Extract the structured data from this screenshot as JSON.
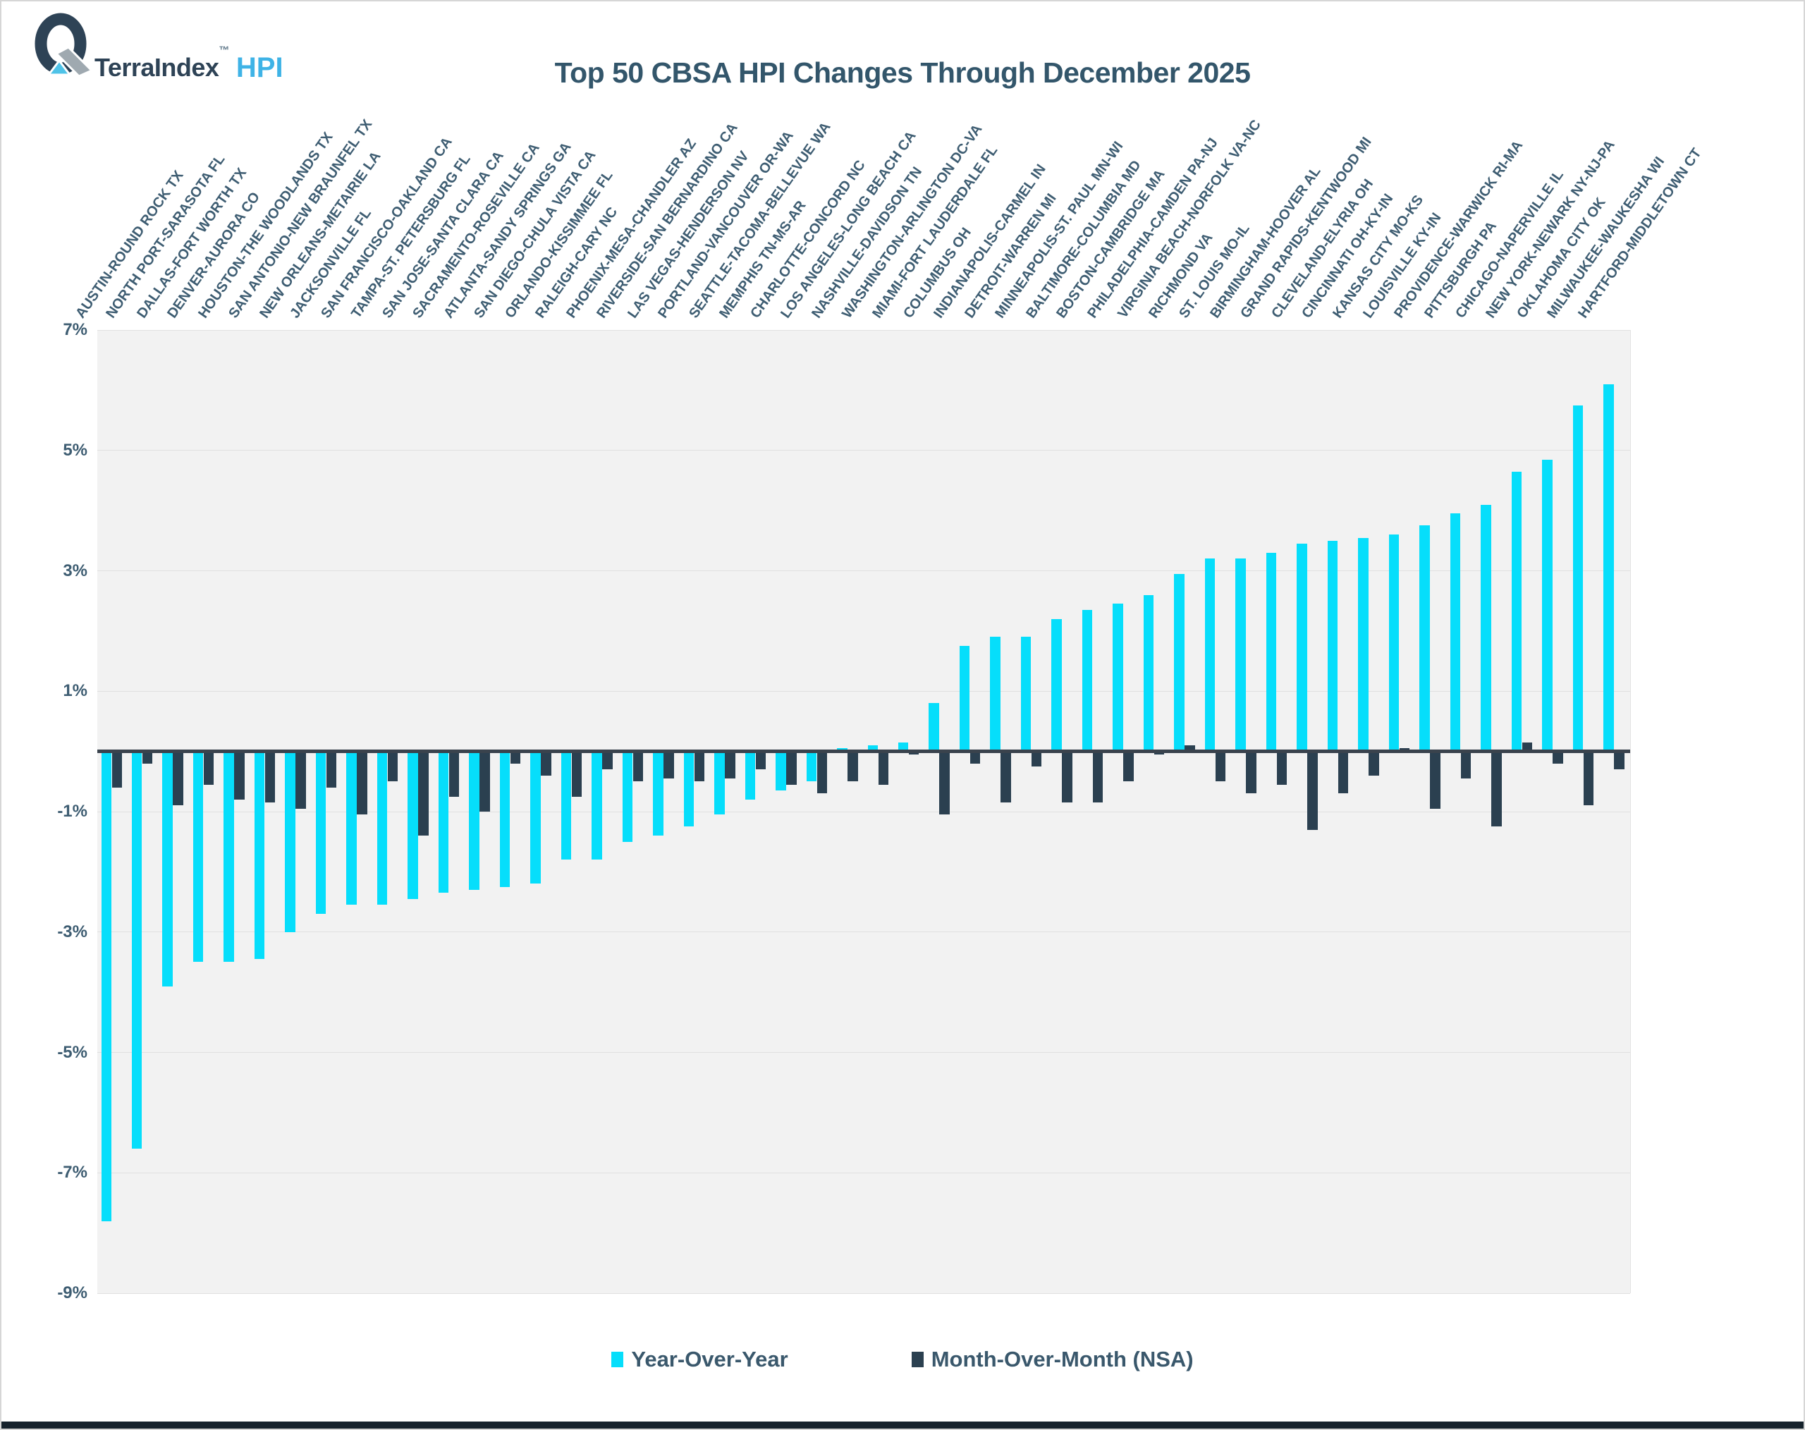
{
  "logo": {
    "brand": "TerraIndex",
    "tm": "™",
    "suffix": "HPI"
  },
  "header": {
    "title": "Top 50 CBSA HPI Changes Through December 2025"
  },
  "legend": {
    "yoy_label": "Year-Over-Year",
    "mom_label": "Month-Over-Month (NSA)"
  },
  "colors": {
    "yoy_bar": "#06defb",
    "mom_bar": "#2b4050",
    "title_text": "#33566b",
    "axis_text": "#3e5d72",
    "plot_bg": "#f2f2f2",
    "gridline": "#e0e0e0",
    "zero_line": "#3a434d",
    "logo_dark": "#2e4356",
    "logo_gray": "#9fa9b0",
    "logo_cyan": "#4fc3e8",
    "bottom_bar": "#16222c"
  },
  "chart_data": {
    "type": "bar",
    "title": "Top 50 CBSA HPI Changes Through December 2025",
    "xlabel": "",
    "ylabel": "",
    "unit": "%",
    "grid": true,
    "legend_position": "bottom",
    "y_axis": {
      "max": 7,
      "min": -9,
      "tick_values": [
        7,
        5,
        3,
        1,
        -1,
        -3,
        -5,
        -7,
        -9
      ],
      "tick_labels": [
        "7%",
        "5%",
        "3%",
        "1%",
        "-1%",
        "-3%",
        "-5%",
        "-7%",
        "-9%"
      ]
    },
    "categories": [
      "AUSTIN-ROUND ROCK TX",
      "NORTH PORT-SARASOTA FL",
      "DALLAS-FORT WORTH TX",
      "DENVER-AURORA CO",
      "HOUSTON-THE WOODLANDS TX",
      "SAN ANTONIO-NEW BRAUNFEL TX",
      "NEW ORLEANS-METAIRIE LA",
      "JACKSONVILLE FL",
      "SAN FRANCISCO-OAKLAND CA",
      "TAMPA-ST. PETERSBURG FL",
      "SAN JOSE-SANTA CLARA CA",
      "SACRAMENTO-ROSEVILLE CA",
      "ATLANTA-SANDY SPRINGS GA",
      "SAN DIEGO-CHULA VISTA CA",
      "ORLANDO-KISSIMMEE FL",
      "RALEIGH-CARY NC",
      "PHOENIX-MESA-CHANDLER AZ",
      "RIVERSIDE-SAN BERNARDINO CA",
      "LAS VEGAS-HENDERSON NV",
      "PORTLAND-VANCOUVER OR-WA",
      "SEATTLE-TACOMA-BELLEVUE WA",
      "MEMPHIS TN-MS-AR",
      "CHARLOTTE-CONCORD NC",
      "LOS ANGELES-LONG BEACH CA",
      "NASHVILLE-DAVIDSON TN",
      "WASHINGTON-ARLINGTON DC-VA",
      "MIAMI-FORT LAUDERDALE FL",
      "COLUMBUS OH",
      "INDIANAPOLIS-CARMEL IN",
      "DETROIT-WARREN MI",
      "MINNEAPOLIS-ST. PAUL MN-WI",
      "BALTIMORE-COLUMBIA MD",
      "BOSTON-CAMBRIDGE MA",
      "PHILADELPHIA-CAMDEN PA-NJ",
      "VIRGINIA BEACH-NORFOLK VA-NC",
      "RICHMOND VA",
      "ST. LOUIS MO-IL",
      "BIRMINGHAM-HOOVER AL",
      "GRAND RAPIDS-KENTWOOD MI",
      "CLEVELAND-ELYRIA OH",
      "CINCINNATI OH-KY-IN",
      "KANSAS CITY MO-KS",
      "LOUISVILLE KY-IN",
      "PROVIDENCE-WARWICK RI-MA",
      "PITTSBURGH PA",
      "CHICAGO-NAPERVILLE IL",
      "NEW YORK-NEWARK NY-NJ-PA",
      "OKLAHOMA CITY OK",
      "MILWAUKEE-WAUKESHA WI",
      "HARTFORD-MIDDLETOWN CT"
    ],
    "series": [
      {
        "name": "Year-Over-Year",
        "color": "#06defb",
        "values": [
          -7.8,
          -6.6,
          -3.9,
          -3.5,
          -3.5,
          -3.45,
          -3.0,
          -2.7,
          -2.55,
          -2.55,
          -2.45,
          -2.35,
          -2.3,
          -2.25,
          -2.2,
          -1.8,
          -1.8,
          -1.5,
          -1.4,
          -1.25,
          -1.05,
          -0.8,
          -0.65,
          -0.5,
          0.05,
          0.1,
          0.15,
          0.8,
          1.75,
          1.9,
          1.9,
          2.2,
          2.35,
          2.45,
          2.6,
          2.95,
          3.2,
          3.2,
          3.3,
          3.45,
          3.5,
          3.55,
          3.6,
          3.75,
          3.95,
          4.1,
          4.65,
          4.85,
          5.75,
          6.1
        ]
      },
      {
        "name": "Month-Over-Month (NSA)",
        "color": "#2b4050",
        "values": [
          -0.6,
          -0.2,
          -0.9,
          -0.55,
          -0.8,
          -0.85,
          -0.95,
          -0.6,
          -1.05,
          -0.5,
          -1.4,
          -0.75,
          -1.0,
          -0.2,
          -0.4,
          -0.75,
          -0.3,
          -0.5,
          -0.45,
          -0.5,
          -0.45,
          -0.3,
          -0.55,
          -0.7,
          -0.5,
          -0.55,
          -0.05,
          -1.05,
          -0.2,
          -0.85,
          -0.25,
          -0.85,
          -0.85,
          -0.5,
          -0.05,
          0.1,
          -0.5,
          -0.7,
          -0.55,
          -1.3,
          -0.7,
          -0.4,
          0.05,
          -0.95,
          -0.45,
          -1.25,
          0.15,
          -0.2,
          -0.9,
          -0.3
        ]
      }
    ]
  }
}
